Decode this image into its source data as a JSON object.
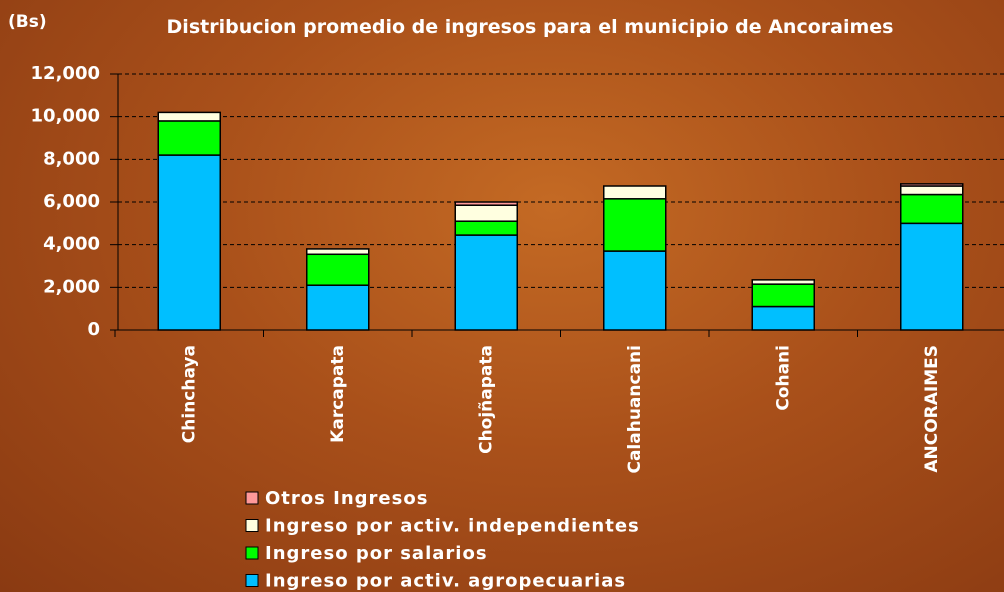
{
  "chart_data": {
    "type": "stacked_bar",
    "title": "Distribucion promedio de ingresos para el municipio de Ancoraimes",
    "y_label": "(Bs)",
    "categories": [
      "Chinchaya",
      "Karcapata",
      "Chojñapata",
      "Calahuancani",
      "Cohani",
      "ANCORAIMES"
    ],
    "series": [
      {
        "name": "Ingreso por activ. agropecuarias",
        "color": "#00bfff",
        "values": [
          8200,
          2100,
          4450,
          3700,
          1100,
          5000
        ]
      },
      {
        "name": "Ingreso por salarios",
        "color": "#00ff00",
        "values": [
          1600,
          1450,
          650,
          2450,
          1050,
          1350
        ]
      },
      {
        "name": "Ingreso por activ. independientes",
        "color": "#ffffe0",
        "values": [
          400,
          250,
          750,
          600,
          200,
          400
        ]
      },
      {
        "name": "Otros Ingresos",
        "color": "#ff9999",
        "values": [
          0,
          0,
          150,
          0,
          0,
          100
        ]
      }
    ],
    "ylim": [
      0,
      12000
    ],
    "yticks": [
      0,
      {
        "value": 2000,
        "label": "2,000"
      },
      {
        "value": 4000,
        "label": "4,000"
      },
      {
        "value": 6000,
        "label": "6,000"
      },
      {
        "value": 8000,
        "label": "8,000"
      },
      {
        "value": 10000,
        "label": "10,000"
      },
      {
        "value": 12000,
        "label": "12,000"
      }
    ],
    "grid": true
  }
}
